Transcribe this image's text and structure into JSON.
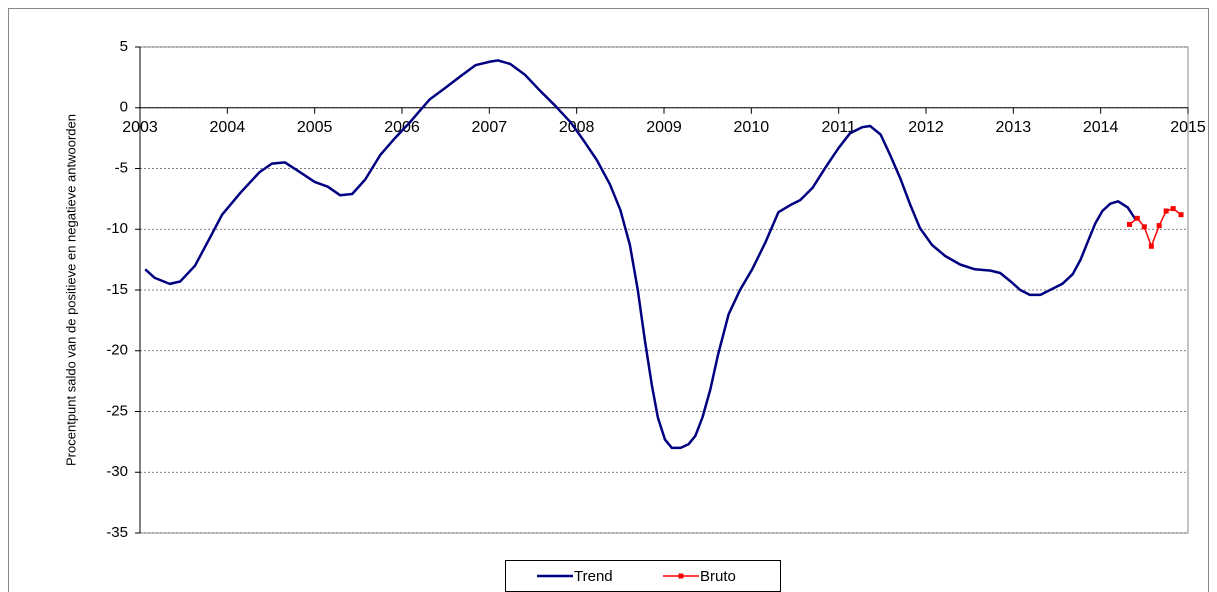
{
  "chart_data": {
    "type": "line",
    "y_label": "Procentpunt saldo van de positieve en negatieve antwoorden",
    "xlim": [
      2003,
      2015
    ],
    "xticks": [
      2003,
      2004,
      2005,
      2006,
      2007,
      2008,
      2009,
      2010,
      2011,
      2012,
      2013,
      2014,
      2015
    ],
    "ylim": [
      -35,
      5
    ],
    "yticks": [
      5,
      0,
      -5,
      -10,
      -15,
      -20,
      -25,
      -30,
      -35
    ],
    "grid": true,
    "legend": "bottom",
    "series": [
      {
        "name": "Trend",
        "color": "#000080",
        "marker": false,
        "x": [
          2003.06,
          2003.17,
          2003.34,
          2003.46,
          2003.63,
          2003.8,
          2003.94,
          2004.15,
          2004.37,
          2004.51,
          2004.66,
          2004.83,
          2005.0,
          2005.15,
          2005.29,
          2005.43,
          2005.58,
          2005.75,
          2005.92,
          2006.09,
          2006.21,
          2006.32,
          2006.49,
          2006.67,
          2006.84,
          2007.01,
          2007.1,
          2007.24,
          2007.41,
          2007.58,
          2007.75,
          2007.93,
          2008.07,
          2008.23,
          2008.38,
          2008.5,
          2008.61,
          2008.7,
          2008.78,
          2008.86,
          2008.93,
          2009.01,
          2009.09,
          2009.19,
          2009.28,
          2009.36,
          2009.44,
          2009.53,
          2009.62,
          2009.74,
          2009.87,
          2010.01,
          2010.16,
          2010.31,
          2010.45,
          2010.56,
          2010.7,
          2010.85,
          2011.0,
          2011.13,
          2011.27,
          2011.36,
          2011.48,
          2011.59,
          2011.71,
          2011.82,
          2011.93,
          2012.07,
          2012.22,
          2012.39,
          2012.56,
          2012.74,
          2012.85,
          2012.97,
          2013.08,
          2013.19,
          2013.31,
          2013.42,
          2013.56,
          2013.68,
          2013.77,
          2013.86,
          2013.94,
          2014.02,
          2014.11,
          2014.2,
          2014.31,
          2014.4
        ],
        "values": [
          -13.3,
          -14,
          -14.5,
          -14.3,
          -13,
          -10.7,
          -8.8,
          -7,
          -5.3,
          -4.6,
          -4.5,
          -5.3,
          -6.1,
          -6.5,
          -7.2,
          -7.1,
          -5.9,
          -3.9,
          -2.5,
          -1.2,
          -0.2,
          0.7,
          1.6,
          2.6,
          3.5,
          3.8,
          3.9,
          3.6,
          2.7,
          1.4,
          0.2,
          -1.2,
          -2.6,
          -4.3,
          -6.3,
          -8.4,
          -11.3,
          -15,
          -19.1,
          -22.8,
          -25.5,
          -27.3,
          -28,
          -28,
          -27.7,
          -27,
          -25.5,
          -23.2,
          -20.3,
          -17,
          -15,
          -13.3,
          -11.1,
          -8.6,
          -8,
          -7.6,
          -6.6,
          -4.9,
          -3.3,
          -2.1,
          -1.6,
          -1.5,
          -2.2,
          -3.9,
          -5.9,
          -8,
          -9.9,
          -11.3,
          -12.2,
          -12.9,
          -13.3,
          -13.4,
          -13.6,
          -14.3,
          -15,
          -15.4,
          -15.4,
          -15,
          -14.5,
          -13.7,
          -12.5,
          -10.9,
          -9.5,
          -8.5,
          -7.9,
          -7.7,
          -8.2,
          -9.2
        ]
      },
      {
        "name": "Bruto",
        "color": "#ff0000",
        "marker": true,
        "x": [
          2014.33,
          2014.42,
          2014.5,
          2014.58,
          2014.67,
          2014.75,
          2014.83,
          2014.92
        ],
        "values": [
          -9.6,
          -9.1,
          -9.8,
          -11.4,
          -9.7,
          -8.5,
          -8.3,
          -8.8
        ]
      }
    ]
  }
}
